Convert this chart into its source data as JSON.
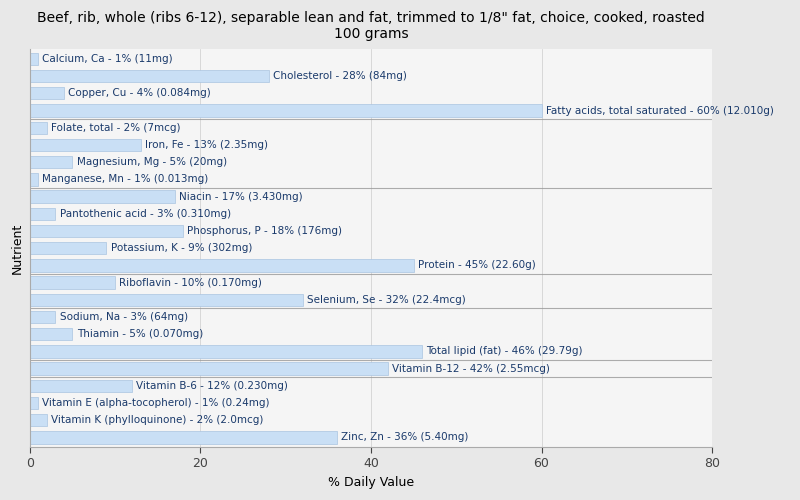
{
  "title": "Beef, rib, whole (ribs 6-12), separable lean and fat, trimmed to 1/8\" fat, choice, cooked, roasted\n100 grams",
  "xlabel": "% Daily Value",
  "ylabel": "Nutrient",
  "xlim": [
    0,
    80
  ],
  "xticks": [
    0,
    20,
    40,
    60,
    80
  ],
  "bar_color": "#c9dff5",
  "edge_color": "#aac4e0",
  "text_color": "#1a3a6b",
  "background_color": "#e8e8e8",
  "plot_bg_color": "#f5f5f5",
  "nutrients": [
    {
      "label": "Calcium, Ca - 1% (11mg)",
      "value": 1
    },
    {
      "label": "Cholesterol - 28% (84mg)",
      "value": 28
    },
    {
      "label": "Copper, Cu - 4% (0.084mg)",
      "value": 4
    },
    {
      "label": "Fatty acids, total saturated - 60% (12.010g)",
      "value": 60
    },
    {
      "label": "Folate, total - 2% (7mcg)",
      "value": 2
    },
    {
      "label": "Iron, Fe - 13% (2.35mg)",
      "value": 13
    },
    {
      "label": "Magnesium, Mg - 5% (20mg)",
      "value": 5
    },
    {
      "label": "Manganese, Mn - 1% (0.013mg)",
      "value": 1
    },
    {
      "label": "Niacin - 17% (3.430mg)",
      "value": 17
    },
    {
      "label": "Pantothenic acid - 3% (0.310mg)",
      "value": 3
    },
    {
      "label": "Phosphorus, P - 18% (176mg)",
      "value": 18
    },
    {
      "label": "Potassium, K - 9% (302mg)",
      "value": 9
    },
    {
      "label": "Protein - 45% (22.60g)",
      "value": 45
    },
    {
      "label": "Riboflavin - 10% (0.170mg)",
      "value": 10
    },
    {
      "label": "Selenium, Se - 32% (22.4mcg)",
      "value": 32
    },
    {
      "label": "Sodium, Na - 3% (64mg)",
      "value": 3
    },
    {
      "label": "Thiamin - 5% (0.070mg)",
      "value": 5
    },
    {
      "label": "Total lipid (fat) - 46% (29.79g)",
      "value": 46
    },
    {
      "label": "Vitamin B-12 - 42% (2.55mcg)",
      "value": 42
    },
    {
      "label": "Vitamin B-6 - 12% (0.230mg)",
      "value": 12
    },
    {
      "label": "Vitamin E (alpha-tocopherol) - 1% (0.24mg)",
      "value": 1
    },
    {
      "label": "Vitamin K (phylloquinone) - 2% (2.0mcg)",
      "value": 2
    },
    {
      "label": "Zinc, Zn - 36% (5.40mg)",
      "value": 36
    }
  ],
  "separator_after_indices": [
    3,
    7,
    12,
    14,
    17,
    18
  ],
  "title_fontsize": 10,
  "label_fontsize": 7.5,
  "tick_fontsize": 9,
  "axis_label_fontsize": 9
}
